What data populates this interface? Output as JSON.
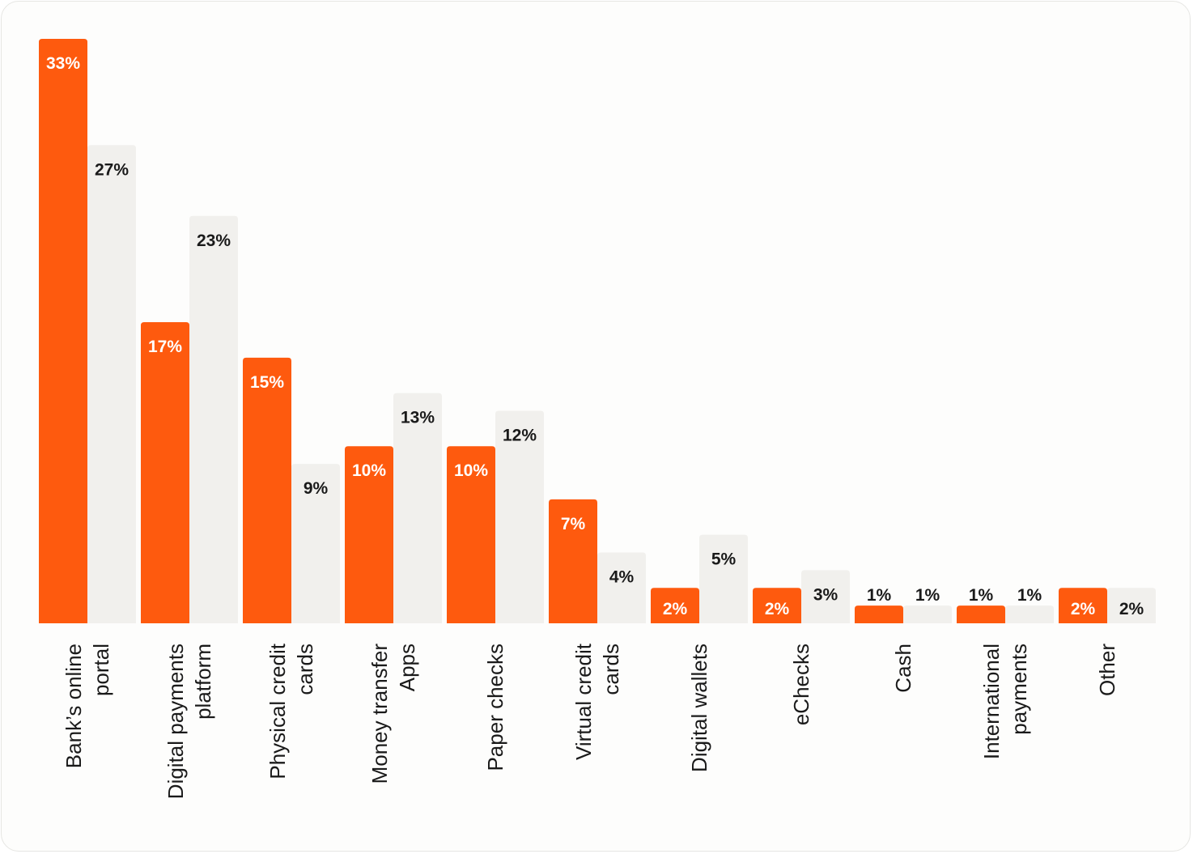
{
  "colors": {
    "primary_bar": "#fe5a0e",
    "secondary_bar": "#f1f0ed",
    "primary_label": "#ffffff",
    "secondary_label": "#1a1a1a",
    "axis_text": "#1a1a1a"
  },
  "chart_data": {
    "type": "bar",
    "title": "",
    "xlabel": "",
    "ylabel": "",
    "ylim": [
      0,
      33
    ],
    "grid": false,
    "value_suffix": "%",
    "categories": [
      [
        "Bank’s online",
        "portal"
      ],
      [
        "Digital payments",
        "platform"
      ],
      [
        "Physical credit",
        "cards"
      ],
      [
        "Money transfer",
        "Apps"
      ],
      [
        "Paper checks"
      ],
      [
        "Virtual credit",
        "cards"
      ],
      [
        "Digital wallets"
      ],
      [
        "eChecks"
      ],
      [
        "Cash"
      ],
      [
        "International",
        "payments"
      ],
      [
        "Other"
      ]
    ],
    "series": [
      {
        "values": [
          33,
          17,
          15,
          10,
          10,
          7,
          2,
          2,
          1,
          1,
          2
        ],
        "color": "#fe5a0e"
      },
      {
        "values": [
          27,
          23,
          9,
          13,
          12,
          4,
          5,
          3,
          1,
          1,
          2
        ],
        "color": "#f1f0ed"
      }
    ]
  }
}
